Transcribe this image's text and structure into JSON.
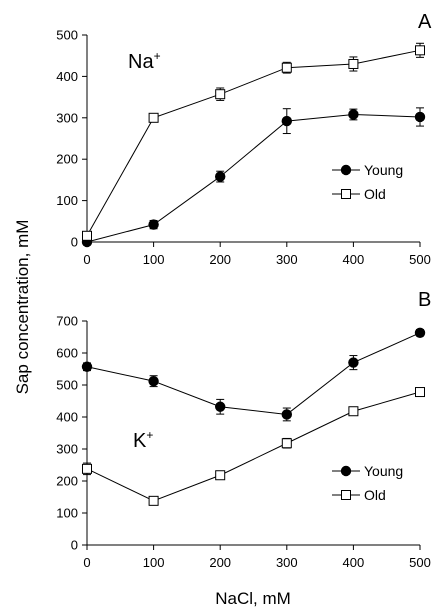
{
  "ylabel": "Sap concentration, mM",
  "xlabel": "NaCl, mM",
  "chart_data": [
    {
      "type": "line",
      "panel": "A",
      "ion": "Na",
      "ion_charge": "+",
      "x": [
        0,
        100,
        200,
        300,
        400,
        500
      ],
      "xlim": [
        0,
        500
      ],
      "xticks": [
        "0",
        "100",
        "200",
        "300",
        "400",
        "500"
      ],
      "ylim": [
        0,
        500
      ],
      "yticks": [
        "0",
        "100",
        "200",
        "300",
        "400",
        "500"
      ],
      "legend_position": "right",
      "series": [
        {
          "name": "Young",
          "marker": "filled-circle",
          "values": [
            0,
            42,
            158,
            292,
            308,
            302
          ],
          "errors": [
            0,
            10,
            13,
            30,
            13,
            22
          ]
        },
        {
          "name": "Old",
          "marker": "open-square",
          "values": [
            15,
            300,
            357,
            421,
            430,
            463
          ],
          "errors": [
            0,
            0,
            15,
            13,
            17,
            17
          ]
        }
      ]
    },
    {
      "type": "line",
      "panel": "B",
      "ion": "K",
      "ion_charge": "+",
      "x": [
        0,
        100,
        200,
        300,
        400,
        500
      ],
      "xlim": [
        0,
        500
      ],
      "xticks": [
        "0",
        "100",
        "200",
        "300",
        "400",
        "500"
      ],
      "ylim": [
        0,
        700
      ],
      "yticks": [
        "0",
        "100",
        "200",
        "300",
        "400",
        "500",
        "600",
        "700"
      ],
      "legend_position": "right",
      "series": [
        {
          "name": "Young",
          "marker": "filled-circle",
          "values": [
            557,
            512,
            432,
            408,
            570,
            663
          ],
          "errors": [
            12,
            17,
            23,
            20,
            22,
            10
          ]
        },
        {
          "name": "Old",
          "marker": "open-square",
          "values": [
            238,
            138,
            218,
            318,
            418,
            478
          ],
          "errors": [
            18,
            0,
            0,
            15,
            0,
            0
          ]
        }
      ]
    }
  ]
}
